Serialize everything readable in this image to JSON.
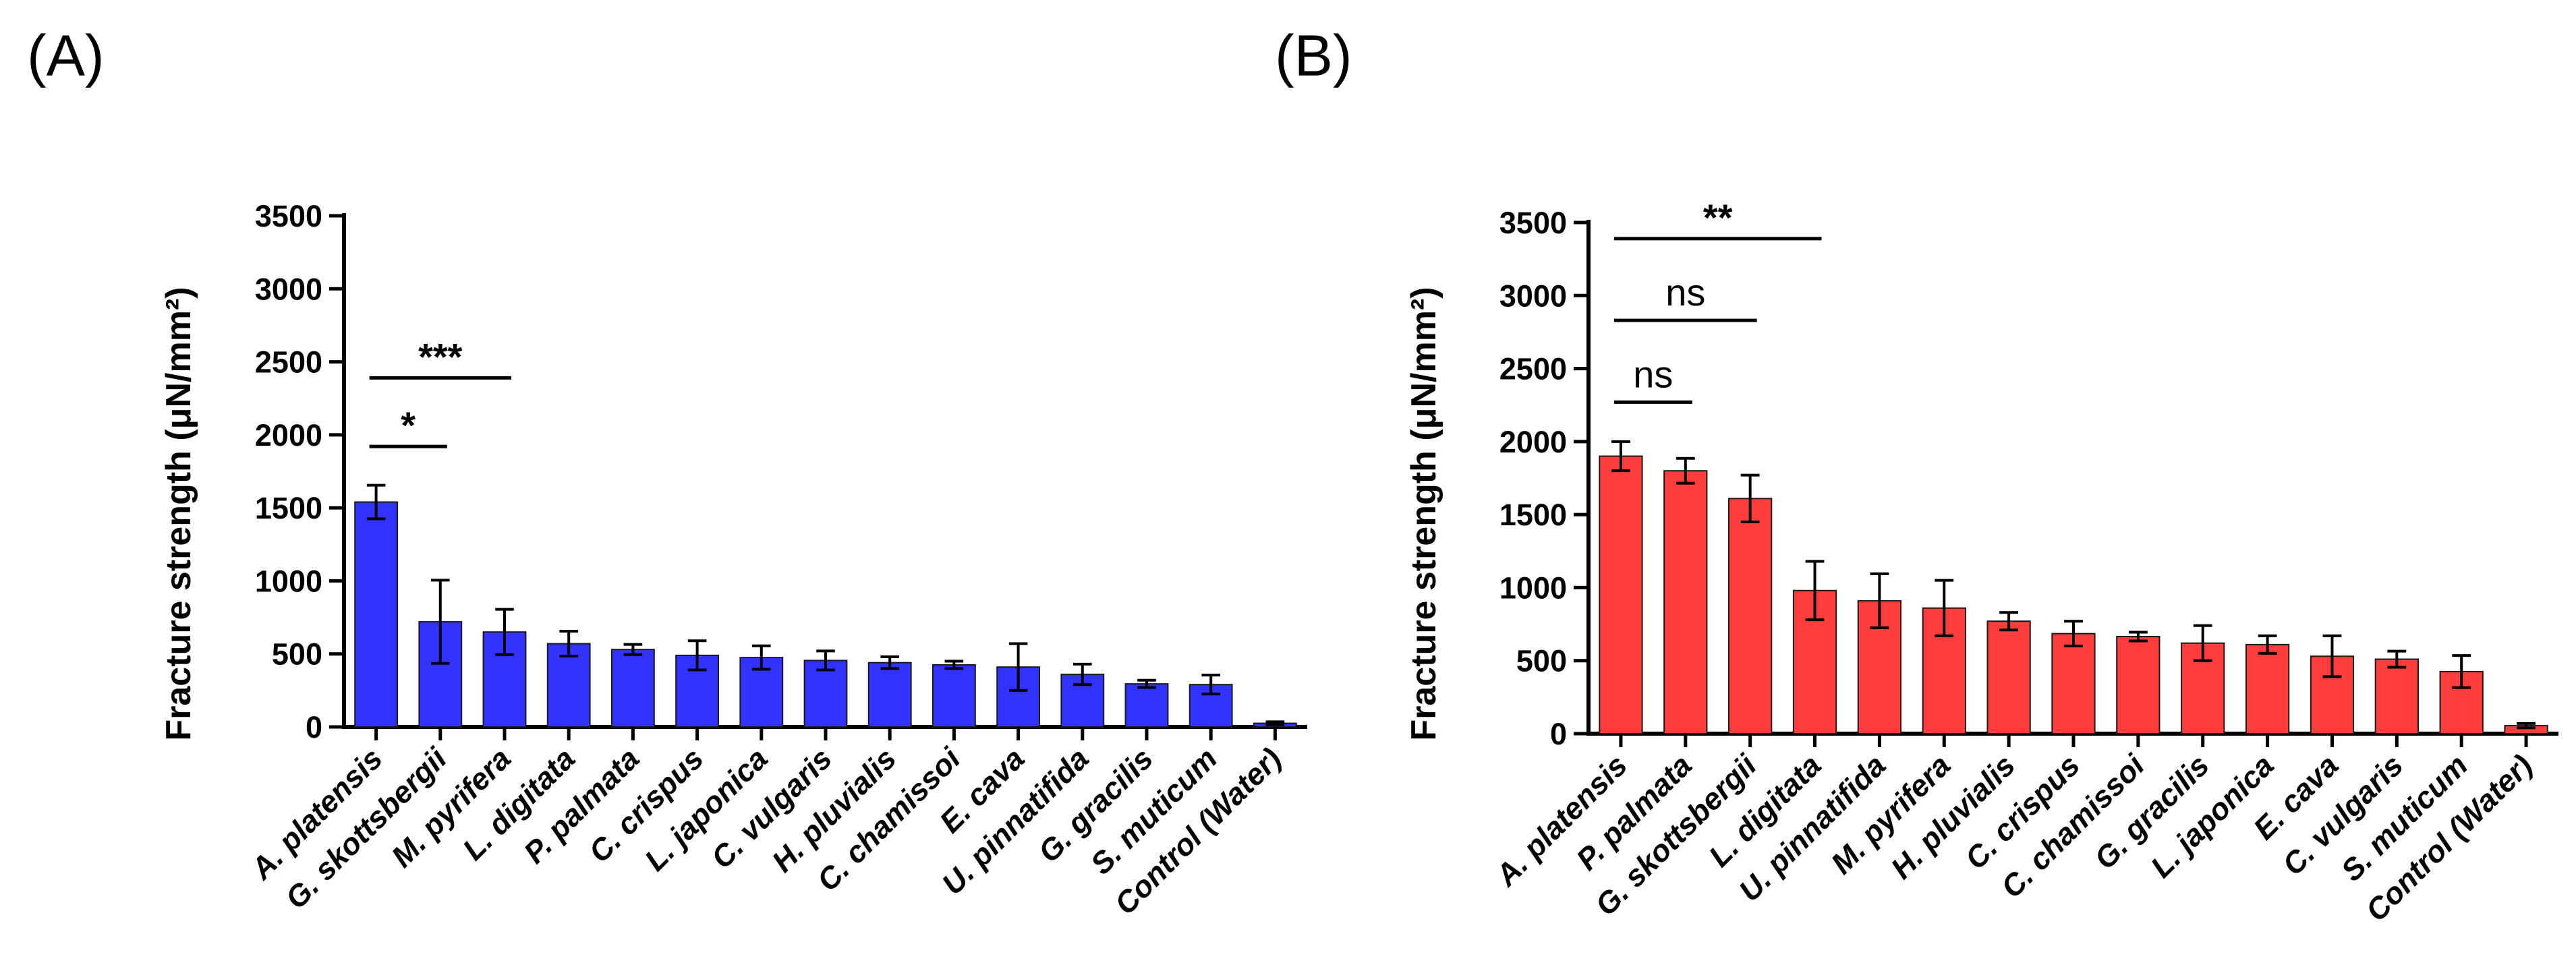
{
  "panels": [
    {
      "label": "(A)",
      "color": "#3333ff",
      "chart_data": {
        "type": "bar",
        "ylabel": "Fracture strength (μN/mm²)",
        "ylim": [
          0,
          3500
        ],
        "yticks": [
          0,
          500,
          1000,
          1500,
          2000,
          2500,
          3000,
          3500
        ],
        "categories": [
          "A. platensis",
          "G. skottsbergii",
          "M. pyrifera",
          "L. digitata",
          "P. palmata",
          "C. crispus",
          "L. japonica",
          "C. vulgaris",
          "H. pluvialis",
          "C. chamissoi",
          "E. cava",
          "U. pinnatifida",
          "G. gracilis",
          "S. muticum",
          "Control (Water)"
        ],
        "values": [
          1540,
          720,
          650,
          570,
          530,
          490,
          475,
          455,
          440,
          425,
          410,
          360,
          295,
          290,
          25
        ],
        "errors": [
          115,
          285,
          155,
          85,
          35,
          100,
          80,
          65,
          40,
          25,
          160,
          70,
          25,
          65,
          10
        ],
        "significance": [
          {
            "from": 0,
            "to": 1,
            "label": "*",
            "y": 1920
          },
          {
            "from": 0,
            "to": 2,
            "label": "***",
            "y": 2390
          }
        ]
      }
    },
    {
      "label": "(B)",
      "color": "#ff3d3d",
      "chart_data": {
        "type": "bar",
        "ylabel": "Fracture strength (μN/mm²)",
        "ylim": [
          0,
          3500
        ],
        "yticks": [
          0,
          500,
          1000,
          1500,
          2000,
          2500,
          3000,
          3500
        ],
        "categories": [
          "A. platensis",
          "P. palmata",
          "G. skottsbergii",
          "L. digitata",
          "U. pinnatifida",
          "M. pyrifera",
          "H. pluvialis",
          "C. crispus",
          "C. chamissoi",
          "G. gracilis",
          "L. japonica",
          "E. cava",
          "C. vulgaris",
          "S. muticum",
          "Control (Water)"
        ],
        "values": [
          1900,
          1800,
          1610,
          980,
          910,
          860,
          770,
          685,
          665,
          620,
          610,
          530,
          510,
          425,
          55
        ],
        "errors": [
          100,
          85,
          160,
          200,
          185,
          190,
          60,
          85,
          30,
          120,
          60,
          140,
          55,
          110,
          15
        ],
        "significance": [
          {
            "from": 0,
            "to": 1,
            "label": "ns",
            "y": 2270
          },
          {
            "from": 0,
            "to": 2,
            "label": "ns",
            "y": 2830
          },
          {
            "from": 0,
            "to": 3,
            "label": "**",
            "y": 3390
          }
        ]
      }
    }
  ]
}
